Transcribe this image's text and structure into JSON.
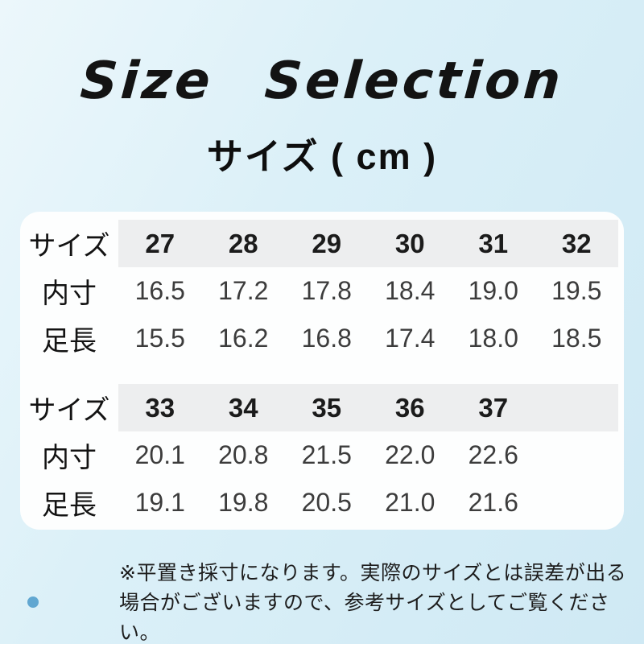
{
  "page": {
    "title": "Size Selection",
    "subtitle": "サイズ ( cm )"
  },
  "chart_data": [
    {
      "type": "table",
      "header": [
        "サイズ",
        "27",
        "28",
        "29",
        "30",
        "31",
        "32"
      ],
      "rows": [
        [
          "内寸",
          "16.5",
          "17.2",
          "17.8",
          "18.4",
          "19.0",
          "19.5"
        ],
        [
          "足長",
          "15.5",
          "16.2",
          "16.8",
          "17.4",
          "18.0",
          "18.5"
        ]
      ]
    },
    {
      "type": "table",
      "header": [
        "サイズ",
        "33",
        "34",
        "35",
        "36",
        "37"
      ],
      "rows": [
        [
          "内寸",
          "20.1",
          "20.8",
          "21.5",
          "22.0",
          "22.6"
        ],
        [
          "足長",
          "19.1",
          "19.8",
          "20.5",
          "21.0",
          "21.6"
        ]
      ]
    }
  ],
  "footnote": {
    "line1": "※平置き採寸になります。実際のサイズとは誤差が出る",
    "line2": "場合がございますので、参考サイズとしてご覧ください。"
  },
  "colors": {
    "background": "#d9eef7",
    "card": "#fdfefe",
    "header_band": "#edeeef",
    "accent_dot": "#61a7d1",
    "title_text": "#131313",
    "value_text": "#3c3c3c"
  }
}
